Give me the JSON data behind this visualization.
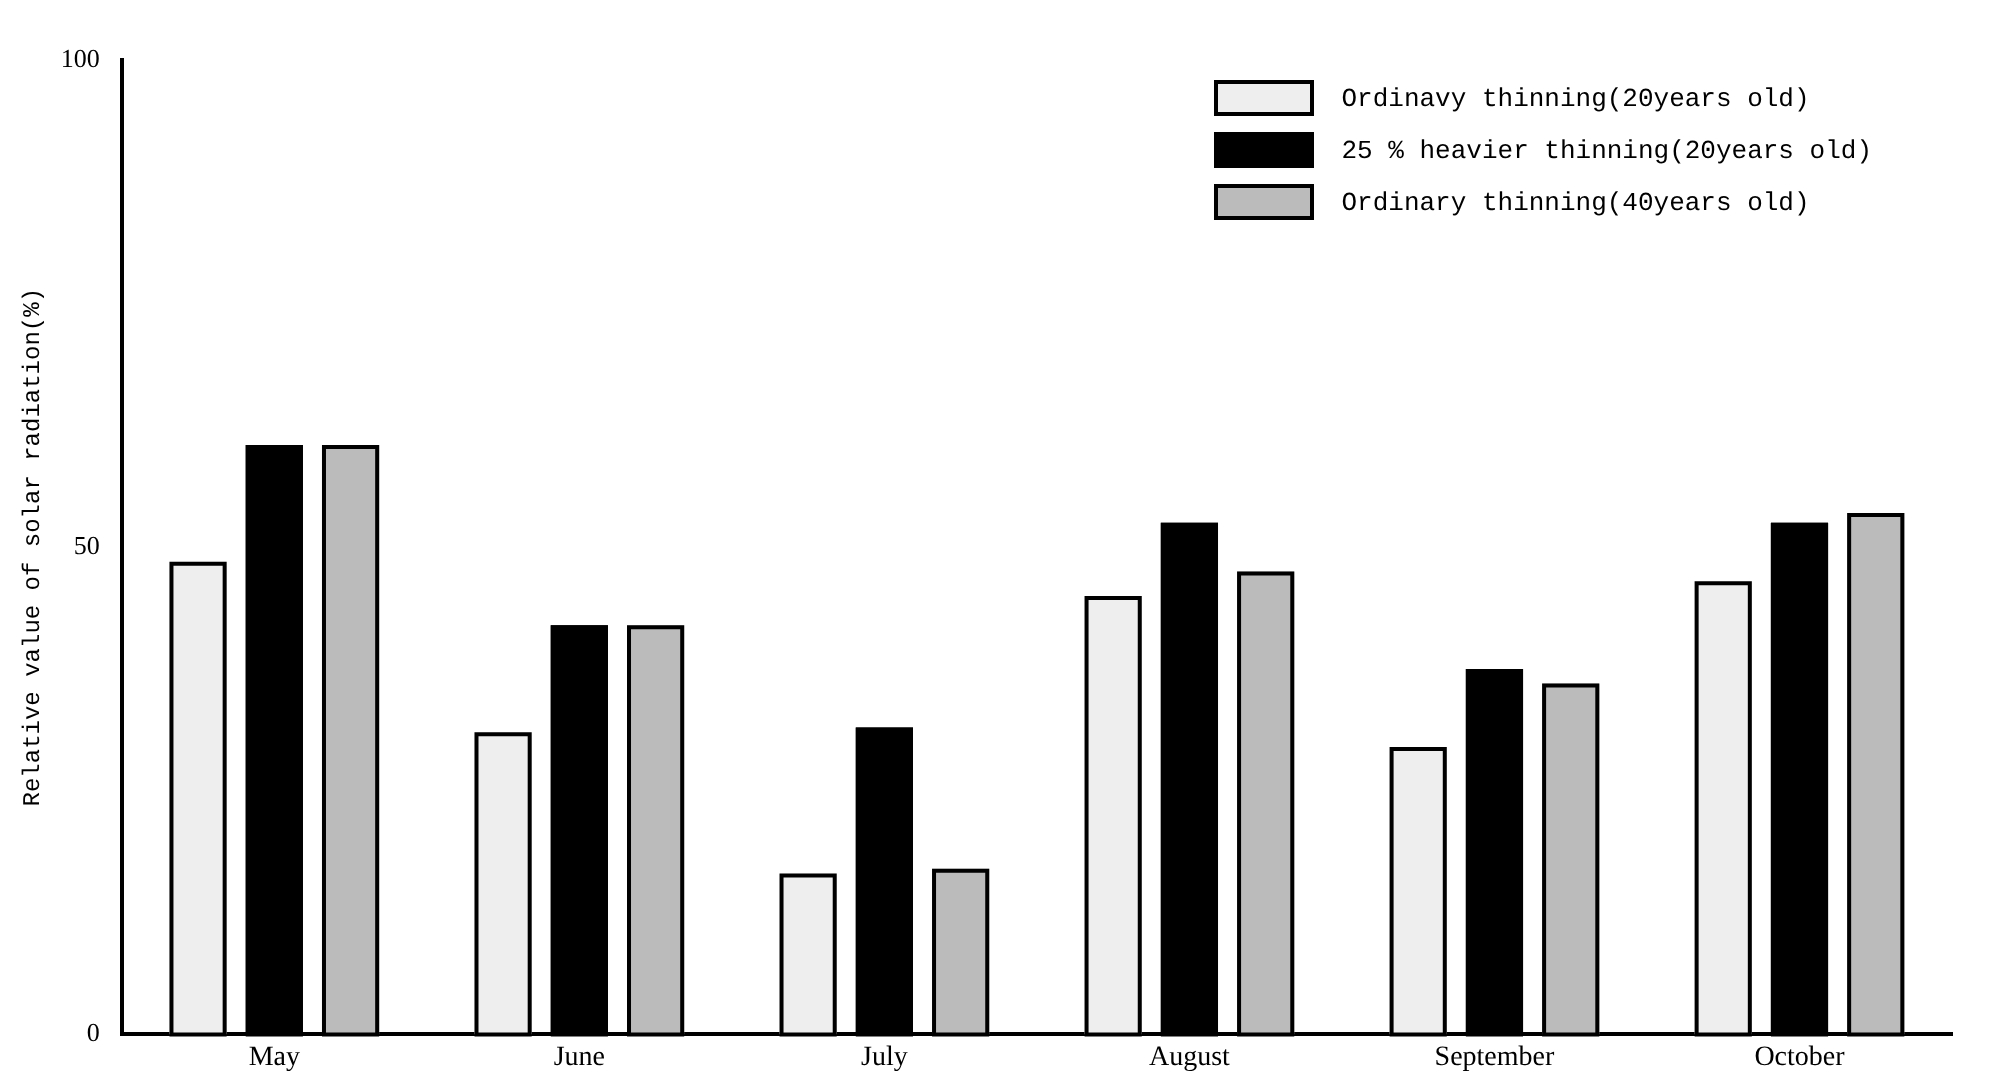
{
  "chart_data": {
    "type": "bar",
    "ylabel": "Relative value of solar radiation(%)",
    "categories": [
      "May",
      "June",
      "July",
      "August",
      "September",
      "October"
    ],
    "series": [
      {
        "name": "Ordinavy thinning(20years old)",
        "color": "#eeeeee",
        "values": [
          48.5,
          31,
          16.5,
          45,
          29.5,
          46.5
        ]
      },
      {
        "name": "25 % heavier thinning(20years old)",
        "color": "#000000",
        "values": [
          60.5,
          42,
          31.5,
          52.5,
          37.5,
          52.5
        ]
      },
      {
        "name": "Ordinary thinning(40years old)",
        "color": "#bbbbbb",
        "values": [
          60.5,
          42,
          17,
          47.5,
          36,
          53.5
        ]
      }
    ],
    "ylim": [
      0,
      100
    ],
    "yticks": [
      0,
      50,
      100
    ],
    "grid": false,
    "legend": "top right"
  }
}
